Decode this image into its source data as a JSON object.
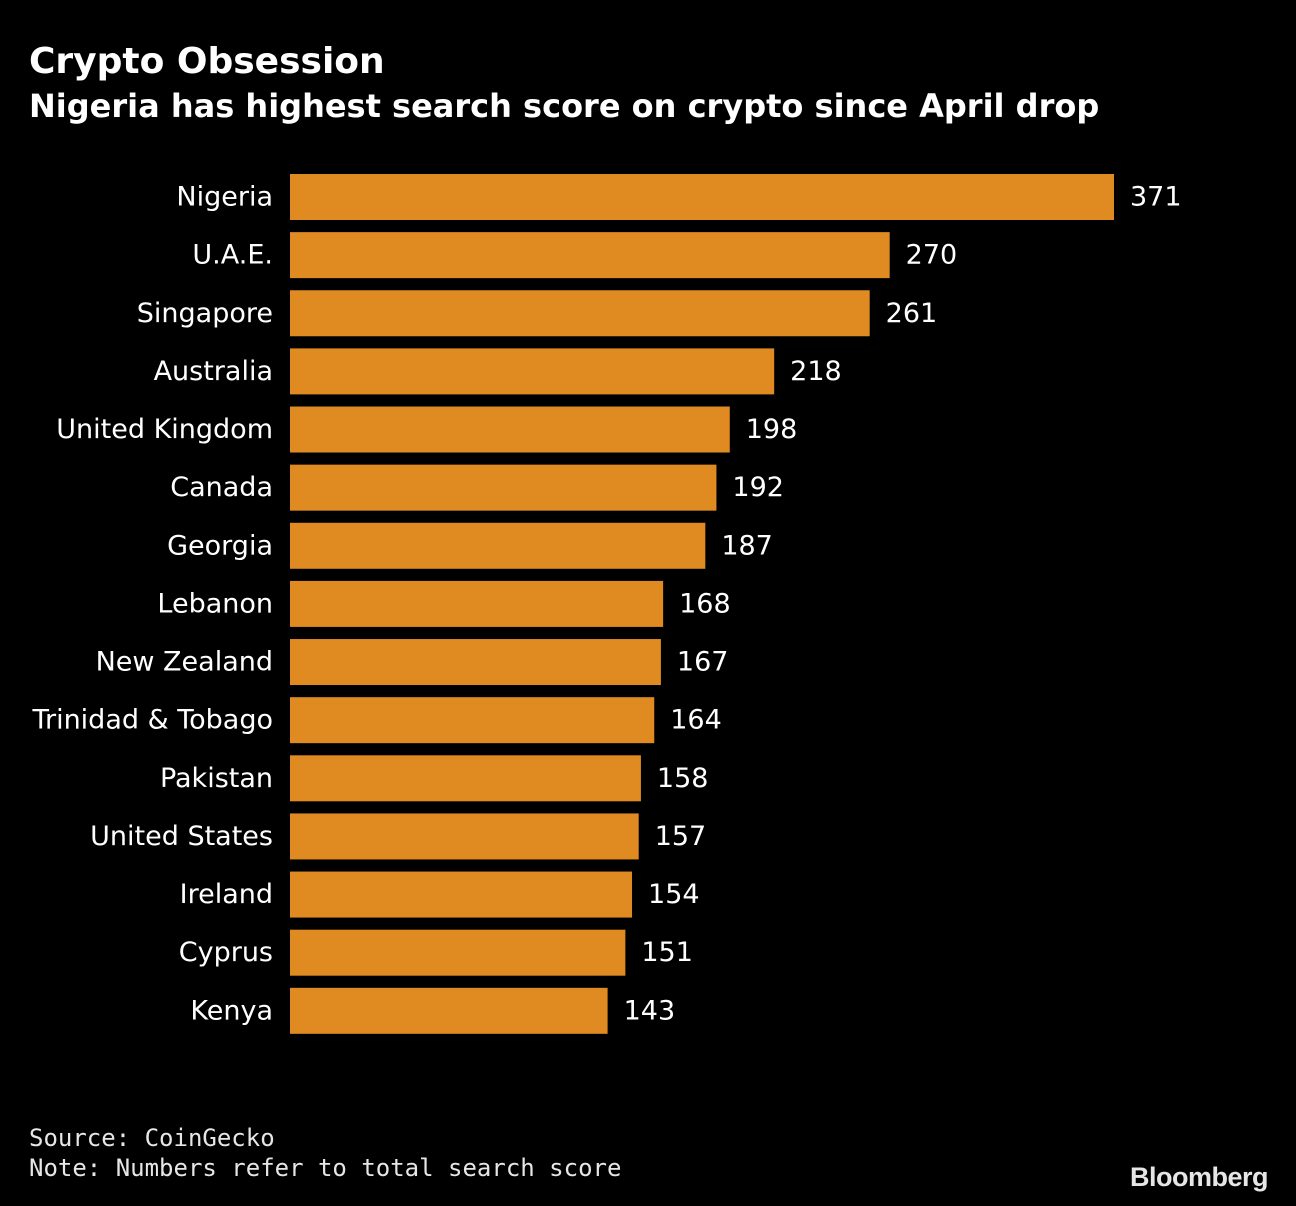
{
  "header": {
    "title": "Crypto Obsession",
    "subtitle": "Nigeria has highest search score on crypto since April drop"
  },
  "chart_data": {
    "type": "bar",
    "orientation": "horizontal",
    "categories": [
      "Nigeria",
      "U.A.E.",
      "Singapore",
      "Australia",
      "United Kingdom",
      "Canada",
      "Georgia",
      "Lebanon",
      "New Zealand",
      "Trinidad & Tobago",
      "Pakistan",
      "United States",
      "Ireland",
      "Cyprus",
      "Kenya"
    ],
    "values": [
      371,
      270,
      261,
      218,
      198,
      192,
      187,
      168,
      167,
      164,
      158,
      157,
      154,
      151,
      143
    ],
    "title": "Crypto Obsession",
    "subtitle": "Nigeria has highest search score on crypto since April drop",
    "xlabel": "",
    "ylabel": "",
    "xlim": [
      0,
      371
    ],
    "grid": false,
    "legend": "none",
    "data_labels": true,
    "bar_color": "#e08a22"
  },
  "footer": {
    "source": "Source: CoinGecko",
    "note": "Note: Numbers refer to total search score"
  },
  "brand": {
    "logo_text": "Bloomberg"
  },
  "colors": {
    "background": "#000000",
    "bar": "#e08a22",
    "text": "#ffffff"
  }
}
